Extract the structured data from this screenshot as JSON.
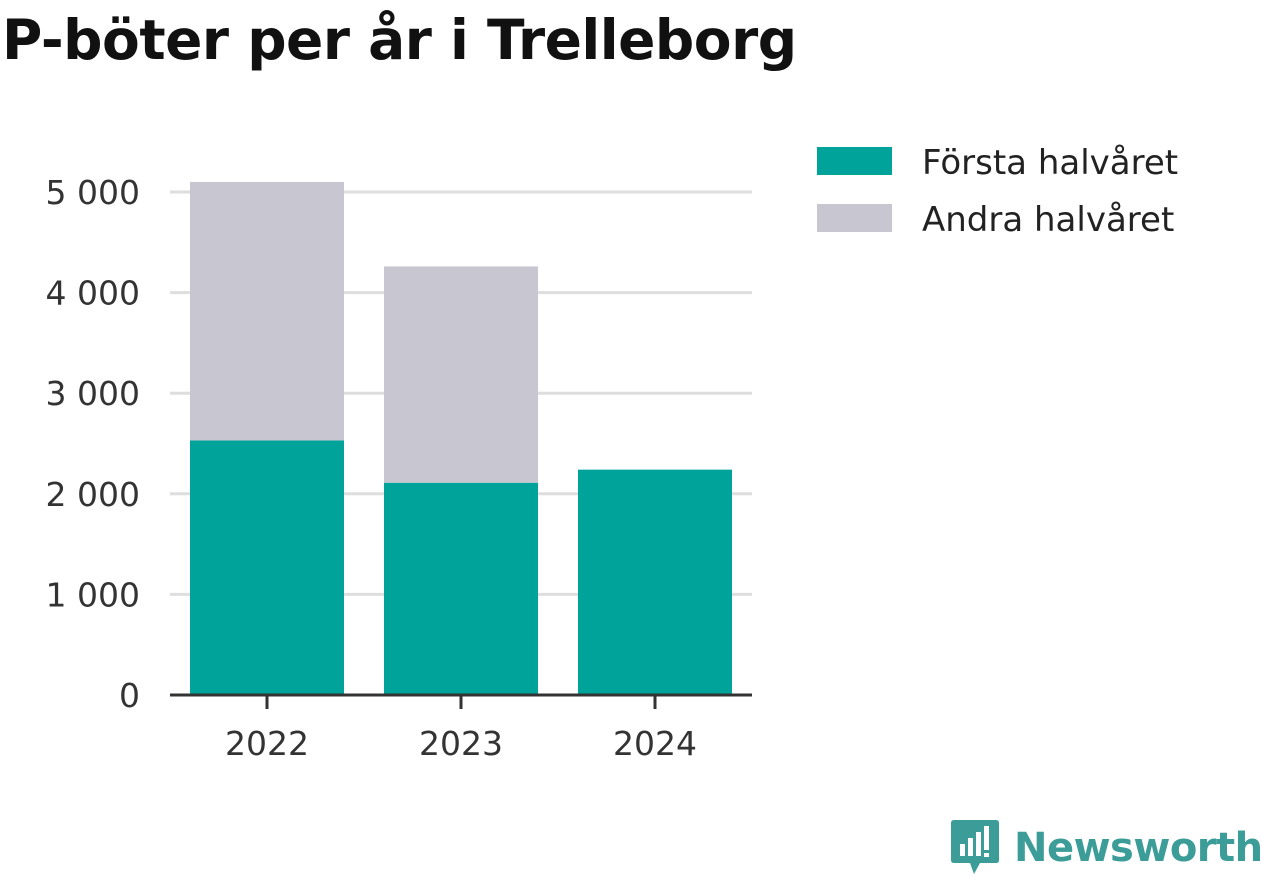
{
  "title": "P-böter per år i Trelleborg",
  "chart_data": {
    "type": "bar",
    "stacked": true,
    "categories": [
      "2022",
      "2023",
      "2024"
    ],
    "series": [
      {
        "name": "Första halvåret",
        "color": "#00a39a",
        "values": [
          2530,
          2110,
          2240
        ]
      },
      {
        "name": "Andra halvåret",
        "color": "#c7c6d1",
        "values": [
          2570,
          2150,
          0
        ]
      }
    ],
    "ylim": [
      0,
      5000
    ],
    "yticks": [
      0,
      1000,
      2000,
      3000,
      4000,
      5000
    ],
    "ytick_labels": [
      "0",
      "1 000",
      "2 000",
      "3 000",
      "4 000",
      "5 000"
    ],
    "grid": true,
    "legend_position": "top-right"
  },
  "brand": {
    "name": "Newsworthy",
    "icon": "newsworthy-logo-icon",
    "color": "#3b9c98"
  }
}
